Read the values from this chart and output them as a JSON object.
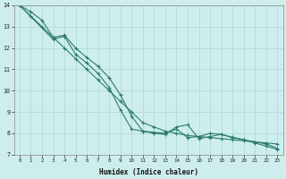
{
  "xlabel": "Humidex (Indice chaleur)",
  "ylabel": "",
  "background_color": "#ceeeed",
  "line_color": "#2d7b6e",
  "grid_color": "#aad8d4",
  "xlim": [
    -0.5,
    23.5
  ],
  "ylim": [
    7,
    14
  ],
  "xticks": [
    0,
    1,
    2,
    3,
    4,
    5,
    6,
    7,
    8,
    9,
    10,
    11,
    12,
    13,
    14,
    15,
    16,
    17,
    18,
    19,
    20,
    21,
    22,
    23
  ],
  "yticks": [
    7,
    8,
    9,
    10,
    11,
    12,
    13,
    14
  ],
  "line1_x": [
    0,
    1,
    2,
    3,
    4,
    5,
    6,
    7,
    8,
    9,
    10,
    11,
    12,
    13,
    14,
    15,
    16,
    17,
    18,
    19,
    20,
    21,
    22,
    23
  ],
  "line1_y": [
    14.0,
    13.5,
    13.0,
    12.5,
    12.0,
    11.5,
    11.0,
    10.5,
    10.0,
    9.5,
    9.0,
    8.5,
    8.3,
    8.1,
    8.0,
    7.9,
    7.85,
    7.8,
    7.75,
    7.7,
    7.65,
    7.6,
    7.55,
    7.5
  ],
  "line2_x": [
    0,
    1,
    2,
    3,
    4,
    5,
    6,
    7,
    8,
    9,
    10,
    11,
    12,
    13,
    14,
    15,
    16,
    17,
    18,
    19,
    20,
    21,
    22,
    23
  ],
  "line2_y": [
    14.0,
    13.7,
    13.3,
    12.5,
    12.6,
    12.0,
    11.55,
    11.15,
    10.6,
    9.8,
    8.8,
    8.1,
    8.05,
    8.0,
    8.2,
    7.8,
    7.85,
    8.0,
    7.95,
    7.8,
    7.7,
    7.6,
    7.5,
    7.3
  ],
  "line3_x": [
    0,
    3,
    4,
    5,
    6,
    7,
    8,
    9,
    10,
    11,
    12,
    13,
    14,
    15,
    16,
    17,
    18,
    19,
    20,
    21,
    22,
    23
  ],
  "line3_y": [
    14.0,
    12.4,
    12.55,
    11.7,
    11.3,
    10.8,
    10.15,
    9.1,
    8.2,
    8.1,
    8.0,
    7.95,
    8.3,
    8.4,
    7.75,
    7.85,
    7.95,
    7.82,
    7.7,
    7.55,
    7.4,
    7.25
  ]
}
